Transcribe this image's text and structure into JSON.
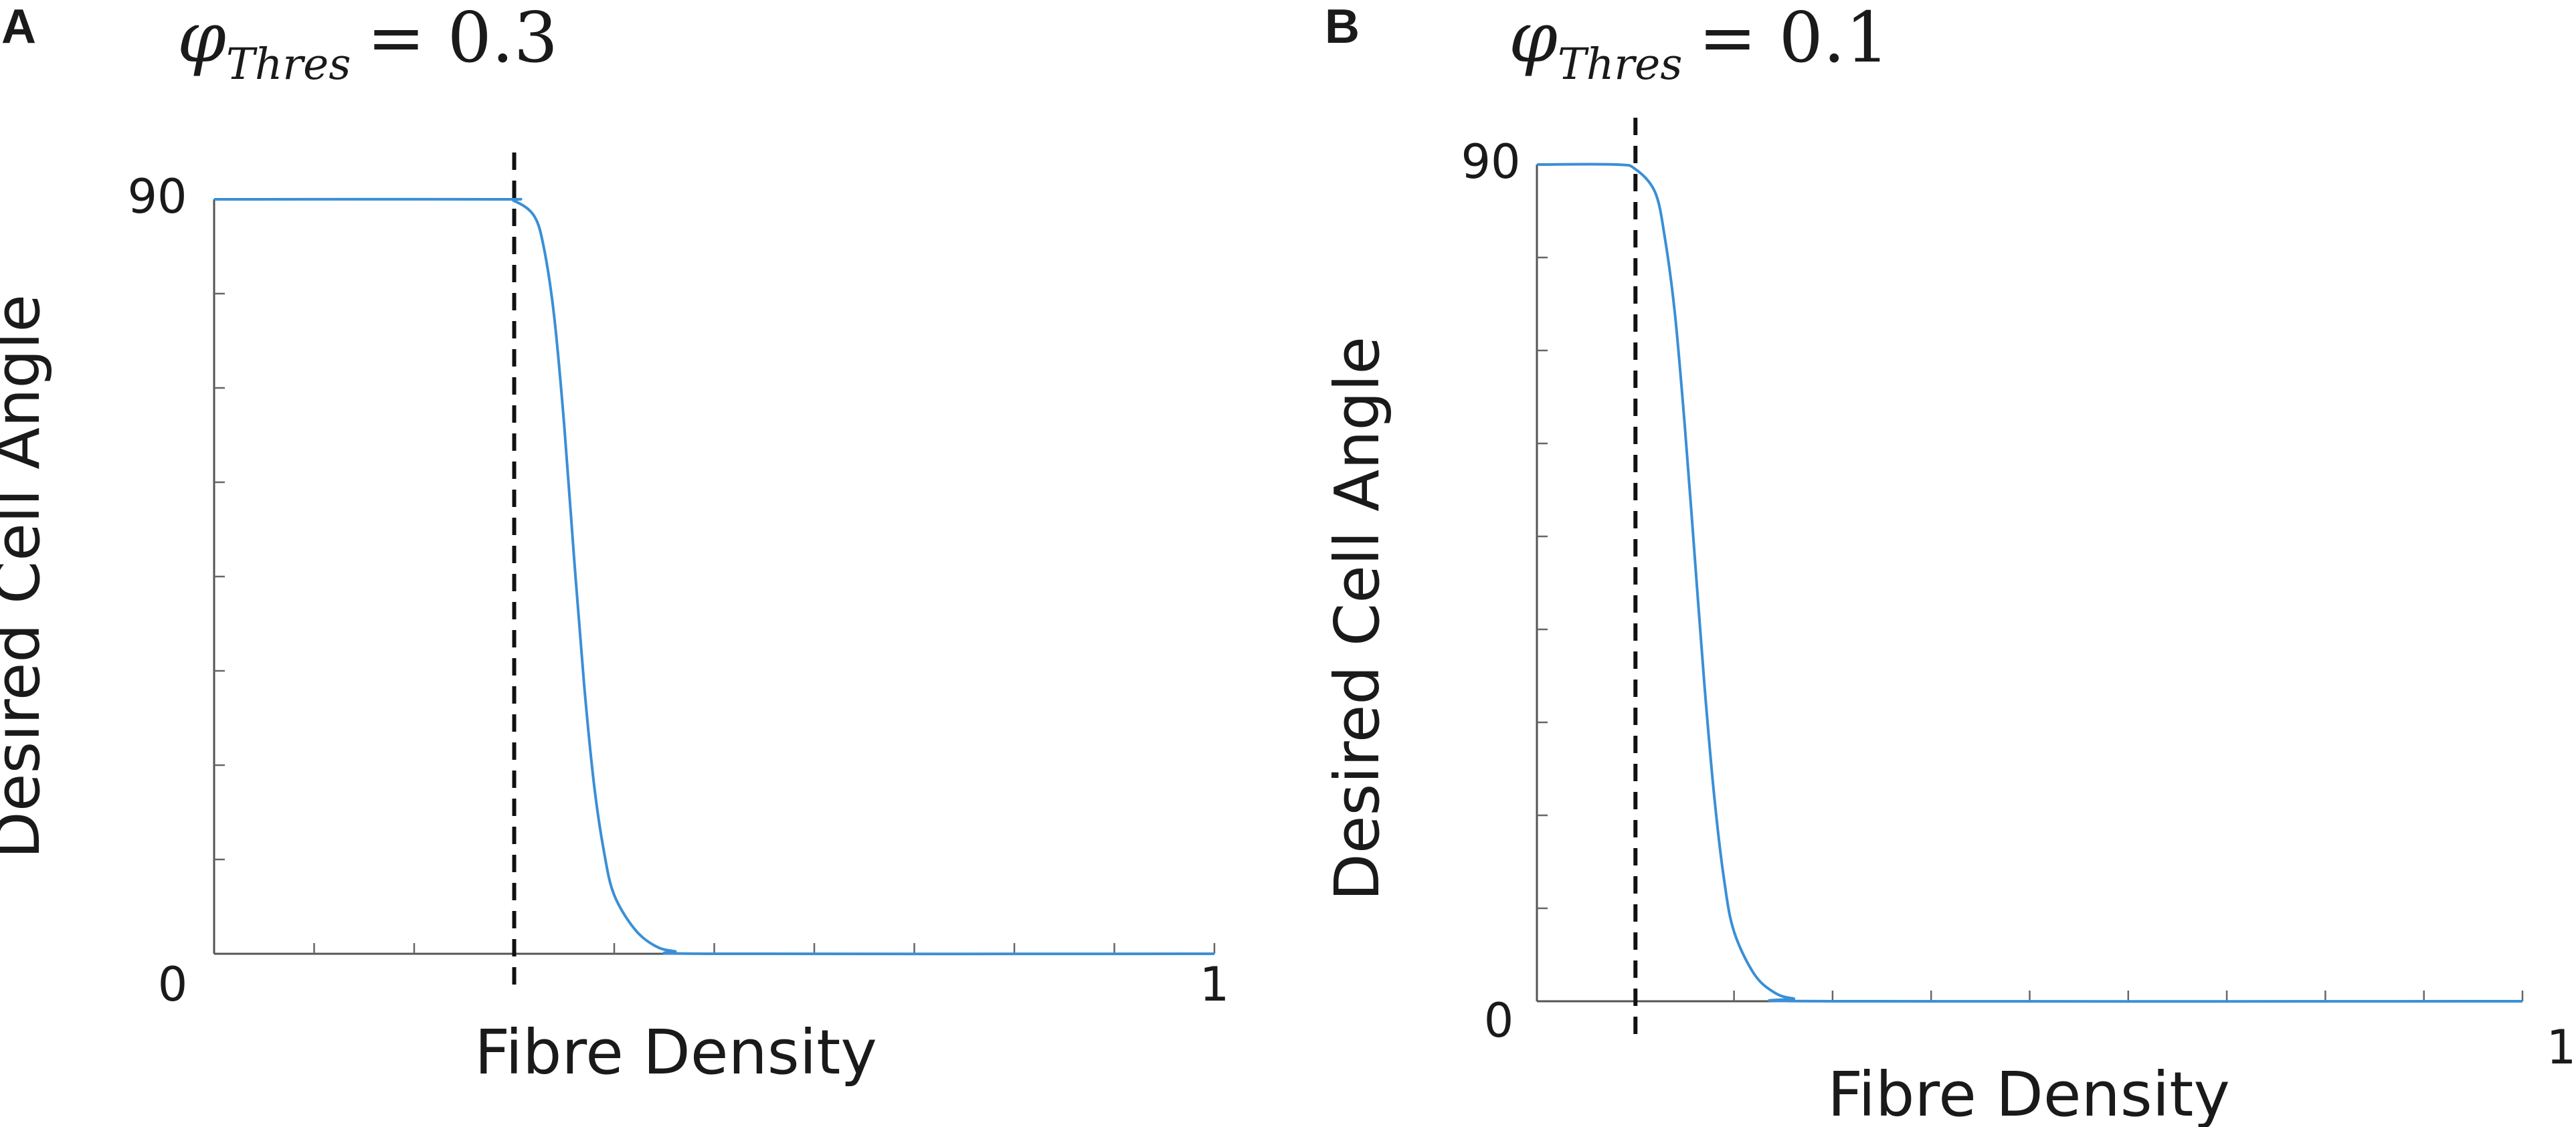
{
  "chart_data": [
    {
      "type": "line",
      "panel_label": "A",
      "title": {
        "symbol": "φ",
        "subscript": "Thres",
        "equals": "= 0.3"
      },
      "xlabel": "Fibre Density",
      "ylabel": "Desired Cell Angle",
      "xlim": [
        0,
        1
      ],
      "ylim": [
        0,
        90
      ],
      "x_ticklabels": [
        "0",
        "1"
      ],
      "y_ticklabels": [
        "90"
      ],
      "threshold": 0.3,
      "series": [
        {
          "color": "#3a8fd6",
          "x": [
            0,
            0.28,
            0.3,
            0.32,
            0.33,
            0.34,
            0.35,
            0.36,
            0.37,
            0.38,
            0.39,
            0.4,
            0.42,
            0.44,
            0.46,
            0.5,
            1
          ],
          "y": [
            90,
            90,
            89.8,
            88,
            84,
            76,
            63,
            47,
            32,
            20,
            12,
            7,
            3,
            1,
            0.3,
            0,
            0
          ]
        }
      ],
      "grid": false
    },
    {
      "type": "line",
      "panel_label": "B",
      "title": {
        "symbol": "φ",
        "subscript": "Thres",
        "equals": "= 0.1"
      },
      "xlabel": "Fibre Density",
      "ylabel": "Desired Cell Angle",
      "xlim": [
        0,
        1
      ],
      "ylim": [
        0,
        90
      ],
      "x_ticklabels": [
        "0",
        "1"
      ],
      "y_ticklabels": [
        "90"
      ],
      "threshold": 0.1,
      "series": [
        {
          "color": "#3a8fd6",
          "x": [
            0,
            0.08,
            0.1,
            0.12,
            0.13,
            0.14,
            0.15,
            0.16,
            0.17,
            0.18,
            0.19,
            0.2,
            0.22,
            0.24,
            0.26,
            0.3,
            1
          ],
          "y": [
            90,
            90,
            89.5,
            87,
            82,
            74,
            62,
            48,
            34,
            22,
            13,
            7.5,
            3,
            1,
            0.3,
            0,
            0
          ]
        }
      ],
      "grid": false
    }
  ]
}
